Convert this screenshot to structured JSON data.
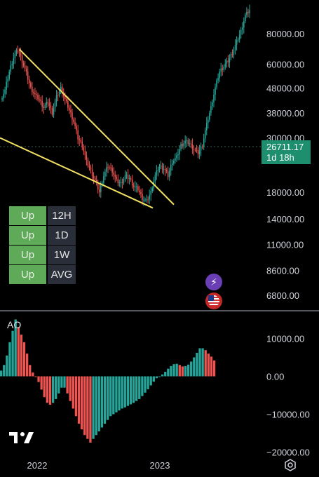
{
  "chart_data": [
    {
      "type": "candlestick",
      "title": "",
      "y_scale": "log",
      "y_tick_labels": [
        "80000.00",
        "60000.00",
        "48000.00",
        "38000.00",
        "30000.00",
        "18000.00",
        "14000.00",
        "11000.00",
        "8600.00",
        "6800.00"
      ],
      "y_tick_values": [
        80000,
        60000,
        48000,
        38000,
        30000,
        18000,
        14000,
        11000,
        8600,
        6800
      ],
      "ylim": [
        6000,
        110000
      ],
      "last_price": "26711.17",
      "countdown": "1d 18h",
      "price_path": [
        43000,
        47000,
        56000,
        64000,
        69000,
        62000,
        55000,
        48000,
        45000,
        43000,
        40000,
        42000,
        38000,
        44000,
        48000,
        43000,
        39000,
        35000,
        30000,
        28000,
        24000,
        22000,
        20000,
        18000,
        21000,
        23000,
        22000,
        20000,
        19500,
        21000,
        20500,
        19000,
        18500,
        17000,
        16500,
        18000,
        21000,
        23000,
        22500,
        21000,
        24000,
        25000,
        28000,
        29000,
        28500,
        27000,
        26000,
        28000,
        34000,
        40000,
        48000,
        56000,
        59000,
        62000,
        67000,
        74000,
        82000,
        95000,
        100000
      ],
      "trendlines": [
        {
          "name": "upper",
          "from_price": 69000,
          "to_price": 16000
        },
        {
          "name": "lower",
          "from_price": 30000,
          "to_price": 15500
        }
      ]
    },
    {
      "type": "bar",
      "name": "AO",
      "y_tick_labels": [
        "10000.00",
        "0.00",
        "−10000.00",
        "−20000.00"
      ],
      "y_tick_values": [
        10000,
        0,
        -10000,
        -20000
      ],
      "ylim": [
        -21000,
        16000
      ],
      "values": [
        1500,
        3000,
        5500,
        9000,
        12000,
        15000,
        13000,
        11000,
        9000,
        6000,
        3000,
        1000,
        0,
        -1500,
        -3500,
        -5500,
        -7000,
        -7500,
        -7000,
        -6000,
        -4500,
        -3000,
        -3000,
        -4500,
        -6500,
        -8500,
        -10500,
        -12500,
        -14000,
        -15500,
        -16500,
        -17500,
        -16500,
        -15500,
        -14500,
        -13500,
        -12500,
        -11500,
        -10500,
        -10000,
        -9500,
        -9000,
        -8500,
        -8200,
        -7800,
        -7400,
        -7000,
        -6500,
        -6000,
        -5200,
        -4300,
        -3400,
        -2400,
        -1400,
        -500,
        0,
        500,
        1200,
        2000,
        2700,
        3200,
        3300,
        3000,
        2600,
        2700,
        3100,
        3900,
        5000,
        6200,
        7400,
        7400,
        6900,
        6000,
        5200,
        4200
      ]
    }
  ],
  "x_tick_labels": [
    "2022",
    "2023"
  ],
  "signals": [
    {
      "status": "Up",
      "timeframe": "12H"
    },
    {
      "status": "Up",
      "timeframe": "1D"
    },
    {
      "status": "Up",
      "timeframe": "1W"
    },
    {
      "status": "Up",
      "timeframe": "AVG"
    }
  ],
  "ao_label": "AO",
  "colors": {
    "up": "#26a69a",
    "down": "#ef5350",
    "trendline": "#f2e063",
    "badge": "#1e8f6e",
    "signal": "#5faa58"
  },
  "icons": [
    "bolt-icon",
    "us-flag-icon",
    "tradingview-logo",
    "settings-icon"
  ]
}
